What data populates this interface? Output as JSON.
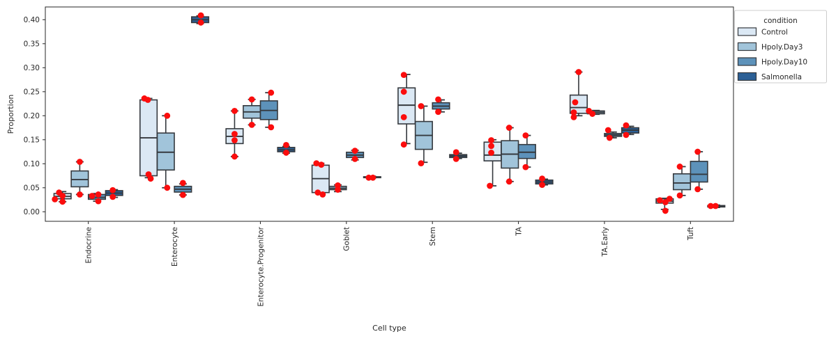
{
  "figure": {
    "background": "#ffffff"
  },
  "style": {
    "edge_color": "#35393e",
    "dot_color": "#fb0d0d",
    "text_color": "#262626",
    "axis_color": "#262626",
    "legend_border": "#cccccc"
  },
  "legend": {
    "title": "condition",
    "entries": [
      {
        "label": "Control",
        "color": "#dbe8f4"
      },
      {
        "label": "Hpoly.Day3",
        "color": "#a1c4da"
      },
      {
        "label": "Hpoly.Day10",
        "color": "#5d92ba"
      },
      {
        "label": "Salmonella",
        "color": "#2c6096"
      }
    ]
  },
  "chart_data": {
    "type": "bar",
    "subtype": "grouped-boxplot-with-strippoints",
    "title": "",
    "xlabel": "Cell type",
    "ylabel": "Proportion",
    "ylim": [
      -0.02,
      0.4265
    ],
    "yticks": [
      0.0,
      0.05,
      0.1,
      0.15,
      0.2,
      0.25,
      0.3,
      0.35,
      0.4
    ],
    "grid": false,
    "legend_position": "outside upper right",
    "categories": [
      "Endocrine",
      "Enterocyte",
      "Enterocyte.Progenitor",
      "Goblet",
      "Stem",
      "TA",
      "TA.Early",
      "Tuft"
    ],
    "conditions": [
      "Control",
      "Hpoly.Day3",
      "Hpoly.Day10",
      "Salmonella"
    ],
    "condition_colors": [
      "#dbe8f4",
      "#a1c4da",
      "#5d92ba",
      "#2c6096"
    ],
    "boxes": [
      {
        "category": "Endocrine",
        "stats": [
          {
            "condition": "Control",
            "whislo": 0.021,
            "q1": 0.027,
            "med": 0.032,
            "q3": 0.038,
            "whishi": 0.042,
            "points": [
              [
                -5,
                0.04
              ],
              [
                0,
                0.033
              ],
              [
                -11,
                0.026
              ],
              [
                0,
                0.021
              ]
            ]
          },
          {
            "condition": "Hpoly.Day3",
            "whislo": 0.036,
            "q1": 0.052,
            "med": 0.067,
            "q3": 0.085,
            "whishi": 0.104,
            "points": [
              [
                0,
                0.104
              ],
              [
                0,
                0.036
              ]
            ]
          },
          {
            "condition": "Hpoly.Day10",
            "whislo": 0.022,
            "q1": 0.026,
            "med": 0.03,
            "q3": 0.036,
            "whishi": 0.038,
            "points": [
              [
                2,
                0.036
              ],
              [
                -7,
                0.033
              ],
              [
                2,
                0.022
              ]
            ]
          },
          {
            "condition": "Salmonella",
            "whislo": 0.03,
            "q1": 0.034,
            "med": 0.039,
            "q3": 0.044,
            "whishi": 0.046,
            "points": [
              [
                -2,
                0.045
              ],
              [
                -2,
                0.031
              ]
            ]
          }
        ]
      },
      {
        "category": "Enterocyte",
        "stats": [
          {
            "condition": "Control",
            "whislo": 0.071,
            "q1": 0.075,
            "med": 0.154,
            "q3": 0.233,
            "whishi": 0.236,
            "points": [
              [
                -6,
                0.236
              ],
              [
                -1,
                0.233
              ],
              [
                0,
                0.078
              ],
              [
                3,
                0.069
              ]
            ]
          },
          {
            "condition": "Hpoly.Day3",
            "whislo": 0.05,
            "q1": 0.087,
            "med": 0.124,
            "q3": 0.164,
            "whishi": 0.2,
            "points": [
              [
                2,
                0.2
              ],
              [
                2,
                0.05
              ]
            ]
          },
          {
            "condition": "Hpoly.Day10",
            "whislo": 0.035,
            "q1": 0.041,
            "med": 0.047,
            "q3": 0.053,
            "whishi": 0.058,
            "points": [
              [
                0,
                0.06
              ],
              [
                0,
                0.035
              ]
            ]
          },
          {
            "condition": "Salmonella",
            "whislo": 0.392,
            "q1": 0.394,
            "med": 0.4,
            "q3": 0.406,
            "whishi": 0.408,
            "points": [
              [
                1,
                0.409
              ],
              [
                1,
                0.394
              ]
            ]
          }
        ]
      },
      {
        "category": "Enterocyte.Progenitor",
        "stats": [
          {
            "condition": "Control",
            "whislo": 0.115,
            "q1": 0.142,
            "med": 0.157,
            "q3": 0.173,
            "whishi": 0.21,
            "points": [
              [
                0,
                0.21
              ],
              [
                0,
                0.162
              ],
              [
                0,
                0.149
              ],
              [
                0,
                0.115
              ]
            ]
          },
          {
            "condition": "Hpoly.Day3",
            "whislo": 0.181,
            "q1": 0.195,
            "med": 0.208,
            "q3": 0.221,
            "whishi": 0.234,
            "points": [
              [
                0,
                0.234
              ],
              [
                0,
                0.181
              ]
            ]
          },
          {
            "condition": "Hpoly.Day10",
            "whislo": 0.176,
            "q1": 0.192,
            "med": 0.211,
            "q3": 0.231,
            "whishi": 0.248,
            "points": [
              [
                3,
                0.248
              ],
              [
                3,
                0.176
              ]
            ]
          },
          {
            "condition": "Salmonella",
            "whislo": 0.122,
            "q1": 0.125,
            "med": 0.129,
            "q3": 0.134,
            "whishi": 0.136,
            "points": [
              [
                0,
                0.139
              ],
              [
                0,
                0.123
              ]
            ]
          }
        ]
      },
      {
        "category": "Goblet",
        "stats": [
          {
            "condition": "Control",
            "whislo": 0.038,
            "q1": 0.04,
            "med": 0.069,
            "q3": 0.097,
            "whishi": 0.101,
            "points": [
              [
                -6,
                0.101
              ],
              [
                1,
                0.098
              ],
              [
                -4,
                0.04
              ],
              [
                3,
                0.036
              ]
            ]
          },
          {
            "condition": "Hpoly.Day3",
            "whislo": 0.042,
            "q1": 0.046,
            "med": 0.049,
            "q3": 0.053,
            "whishi": 0.056,
            "points": [
              [
                0,
                0.055
              ],
              [
                0,
                0.046
              ]
            ]
          },
          {
            "condition": "Hpoly.Day10",
            "whislo": 0.108,
            "q1": 0.113,
            "med": 0.118,
            "q3": 0.124,
            "whishi": 0.128,
            "points": [
              [
                0,
                0.127
              ],
              [
                0,
                0.11
              ]
            ]
          },
          {
            "condition": "Salmonella",
            "whislo": 0.07,
            "q1": 0.071,
            "med": 0.072,
            "q3": 0.073,
            "whishi": 0.074,
            "points": [
              [
                -5,
                0.071
              ],
              [
                1,
                0.071
              ]
            ]
          }
        ]
      },
      {
        "category": "Stem",
        "stats": [
          {
            "condition": "Control",
            "whislo": 0.142,
            "q1": 0.183,
            "med": 0.222,
            "q3": 0.258,
            "whishi": 0.286,
            "points": [
              [
                -4,
                0.285
              ],
              [
                -4,
                0.25
              ],
              [
                -4,
                0.197
              ],
              [
                -4,
                0.14
              ]
            ]
          },
          {
            "condition": "Hpoly.Day3",
            "whislo": 0.103,
            "q1": 0.13,
            "med": 0.159,
            "q3": 0.188,
            "whishi": 0.22,
            "points": [
              [
                -4,
                0.22
              ],
              [
                -4,
                0.101
              ]
            ]
          },
          {
            "condition": "Hpoly.Day10",
            "whislo": 0.208,
            "q1": 0.214,
            "med": 0.22,
            "q3": 0.227,
            "whishi": 0.233,
            "points": [
              [
                -4,
                0.234
              ],
              [
                -4,
                0.208
              ]
            ]
          },
          {
            "condition": "Salmonella",
            "whislo": 0.111,
            "q1": 0.113,
            "med": 0.116,
            "q3": 0.119,
            "whishi": 0.122,
            "points": [
              [
                -3,
                0.124
              ],
              [
                -3,
                0.11
              ]
            ]
          }
        ]
      },
      {
        "category": "TA",
        "stats": [
          {
            "condition": "Control",
            "whislo": 0.054,
            "q1": 0.106,
            "med": 0.118,
            "q3": 0.145,
            "whishi": 0.15,
            "points": [
              [
                -2,
                0.149
              ],
              [
                -2,
                0.137
              ],
              [
                -2,
                0.123
              ],
              [
                -4,
                0.054
              ]
            ]
          },
          {
            "condition": "Hpoly.Day3",
            "whislo": 0.063,
            "q1": 0.091,
            "med": 0.12,
            "q3": 0.148,
            "whishi": 0.175,
            "points": [
              [
                -1,
                0.175
              ],
              [
                -1,
                0.063
              ]
            ]
          },
          {
            "condition": "Hpoly.Day10",
            "whislo": 0.093,
            "q1": 0.111,
            "med": 0.124,
            "q3": 0.14,
            "whishi": 0.159,
            "points": [
              [
                -2,
                0.159
              ],
              [
                -2,
                0.093
              ]
            ]
          },
          {
            "condition": "Salmonella",
            "whislo": 0.056,
            "q1": 0.058,
            "med": 0.062,
            "q3": 0.066,
            "whishi": 0.068,
            "points": [
              [
                -3,
                0.069
              ],
              [
                -3,
                0.056
              ]
            ]
          }
        ]
      },
      {
        "category": "TA.Early",
        "stats": [
          {
            "condition": "Control",
            "whislo": 0.2,
            "q1": 0.205,
            "med": 0.217,
            "q3": 0.243,
            "whishi": 0.291,
            "points": [
              [
                0,
                0.291
              ],
              [
                -5,
                0.228
              ],
              [
                -7,
                0.207
              ],
              [
                -7,
                0.197
              ]
            ]
          },
          {
            "condition": "Hpoly.Day3",
            "whislo": 0.203,
            "q1": 0.204,
            "med": 0.207,
            "q3": 0.21,
            "whishi": 0.211,
            "points": [
              [
                -10,
                0.21
              ],
              [
                -5,
                0.204
              ]
            ]
          },
          {
            "condition": "Hpoly.Day10",
            "whislo": 0.154,
            "q1": 0.157,
            "med": 0.16,
            "q3": 0.163,
            "whishi": 0.166,
            "points": [
              [
                -7,
                0.17
              ],
              [
                -5,
                0.154
              ]
            ]
          },
          {
            "condition": "Salmonella",
            "whislo": 0.161,
            "q1": 0.164,
            "med": 0.17,
            "q3": 0.175,
            "whishi": 0.178,
            "points": [
              [
                -6,
                0.18
              ],
              [
                -6,
                0.16
              ]
            ]
          }
        ]
      },
      {
        "category": "Tuft",
        "stats": [
          {
            "condition": "Control",
            "whislo": 0.005,
            "q1": 0.018,
            "med": 0.022,
            "q3": 0.027,
            "whishi": 0.028,
            "points": [
              [
                -7,
                0.024
              ],
              [
                7,
                0.027
              ],
              [
                1,
                0.02
              ],
              [
                1,
                0.002
              ]
            ]
          },
          {
            "condition": "Hpoly.Day3",
            "whislo": 0.034,
            "q1": 0.046,
            "med": 0.06,
            "q3": 0.079,
            "whishi": 0.094,
            "points": [
              [
                -3,
                0.094
              ],
              [
                -3,
                0.034
              ]
            ]
          },
          {
            "condition": "Hpoly.Day10",
            "whislo": 0.047,
            "q1": 0.062,
            "med": 0.078,
            "q3": 0.105,
            "whishi": 0.125,
            "points": [
              [
                -2,
                0.125
              ],
              [
                -2,
                0.047
              ]
            ]
          },
          {
            "condition": "Salmonella",
            "whislo": 0.009,
            "q1": 0.01,
            "med": 0.012,
            "q3": 0.013,
            "whishi": 0.014,
            "points": [
              [
                -8,
                0.012
              ],
              [
                -1,
                0.012
              ]
            ]
          }
        ]
      }
    ]
  }
}
